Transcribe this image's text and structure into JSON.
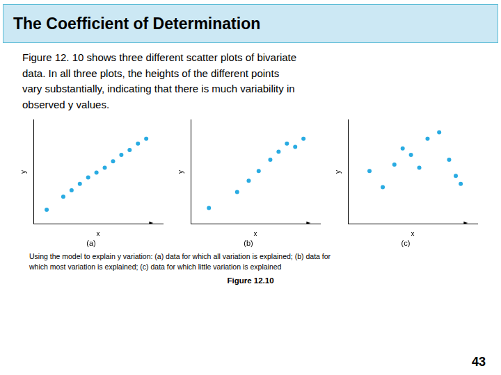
{
  "title": "The Coefficient of Determination",
  "body_text": "Figure 12. 10 shows three different scatter plots of bivariate\ndata. In all three plots, the heights of the different points\nvary substantially, indicating that there is much variability in\nobserved y values.",
  "caption": "Using the model to explain y variation: (a) data for which all variation is explained; (b) data for\nwhich most variation is explained; (c) data for which little variation is explained",
  "figure_label": "Figure 12.10",
  "page_number": "43",
  "chart_data": [
    {
      "type": "scatter",
      "title": "(a)",
      "x_label": "x",
      "y_label": "y",
      "x": [
        0.5,
        1.5,
        2.0,
        2.5,
        3.0,
        3.5,
        4.0,
        4.5,
        5.0,
        5.5,
        6.0,
        6.5
      ],
      "values": [
        0.4,
        1.2,
        1.6,
        2.0,
        2.4,
        2.7,
        3.0,
        3.4,
        3.8,
        4.1,
        4.5,
        4.8
      ],
      "color": "#29abe2",
      "xlim": [
        -0.3,
        7.5
      ],
      "ylim": [
        -0.5,
        6.0
      ],
      "tick_labels": false,
      "grid": false,
      "annotations": [
        {
          "text": "►",
          "x": 6.8,
          "y": -0.4
        }
      ]
    },
    {
      "type": "scatter",
      "title": "(b)",
      "x_label": "x",
      "y_label": "y",
      "x": [
        0.8,
        2.5,
        3.2,
        3.8,
        4.5,
        5.0,
        5.5,
        6.0,
        6.5
      ],
      "values": [
        0.5,
        1.5,
        2.2,
        2.8,
        3.5,
        4.0,
        4.5,
        4.3,
        4.8
      ],
      "color": "#29abe2",
      "xlim": [
        -0.3,
        7.5
      ],
      "ylim": [
        -0.5,
        6.0
      ],
      "tick_labels": false,
      "grid": false,
      "annotations": [
        {
          "text": "►",
          "x": 6.8,
          "y": -0.4
        }
      ]
    },
    {
      "type": "scatter",
      "title": "(c)",
      "x_label": "x",
      "y_label": "y",
      "x": [
        1.0,
        1.8,
        2.5,
        3.0,
        3.5,
        4.0,
        4.5,
        5.2,
        5.8,
        6.2,
        6.5
      ],
      "values": [
        2.8,
        1.8,
        3.2,
        4.2,
        3.8,
        3.0,
        4.8,
        5.2,
        3.5,
        2.5,
        2.0
      ],
      "color": "#29abe2",
      "xlim": [
        -0.3,
        7.5
      ],
      "ylim": [
        -0.5,
        6.0
      ],
      "tick_labels": false,
      "grid": false,
      "annotations": [
        {
          "text": "►",
          "x": 6.8,
          "y": -0.4
        }
      ]
    }
  ]
}
